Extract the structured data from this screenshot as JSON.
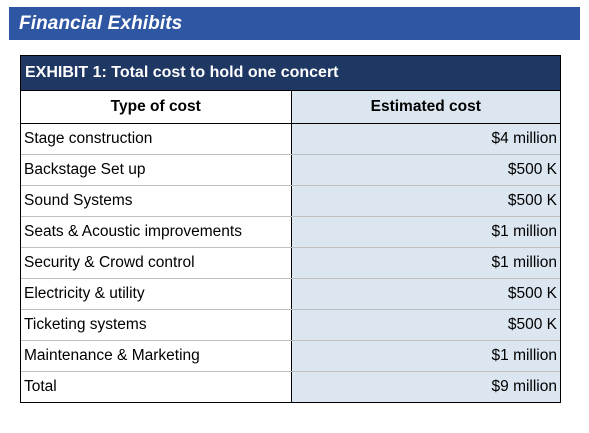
{
  "banner": {
    "title": "Financial Exhibits"
  },
  "exhibit": {
    "title": "EXHIBIT 1: Total cost to hold one concert",
    "columns": [
      "Type of cost",
      "Estimated cost"
    ],
    "rows": [
      {
        "type": "Stage construction",
        "cost": "$4 million"
      },
      {
        "type": "Backstage Set up",
        "cost": "$500 K"
      },
      {
        "type": "Sound Systems",
        "cost": "$500 K"
      },
      {
        "type": "Seats & Acoustic improvements",
        "cost": "$1 million"
      },
      {
        "type": "Security & Crowd control",
        "cost": "$1 million"
      },
      {
        "type": "Electricity & utility",
        "cost": "$500 K"
      },
      {
        "type": "Ticketing systems",
        "cost": "$500 K"
      },
      {
        "type": "Maintenance & Marketing",
        "cost": "$1 million"
      },
      {
        "type": "Total",
        "cost": "$9 million"
      }
    ]
  },
  "colors": {
    "banner_background": "#2f56a3",
    "exhibit_header_background": "#1f3763",
    "cost_column_background": "#dce6f1"
  }
}
